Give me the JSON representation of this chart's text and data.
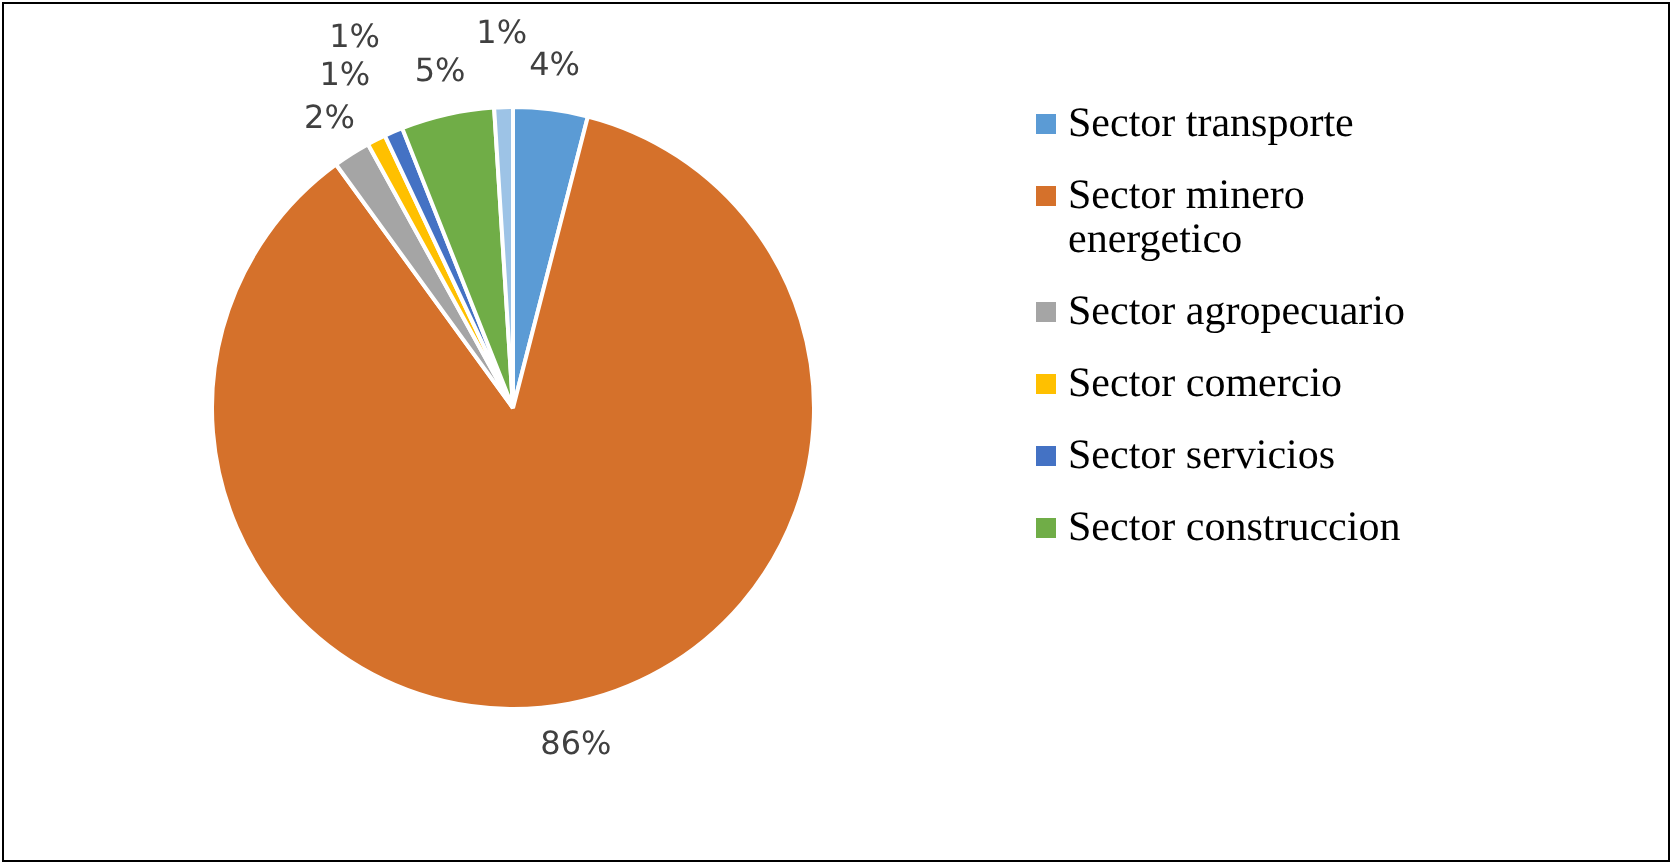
{
  "chart_data": {
    "type": "pie",
    "categories": [
      "Sector transporte",
      "Sector minero energetico",
      "Sector agropecuario",
      "Sector comercio",
      "Sector servicios",
      "Sector construccion",
      null
    ],
    "values": [
      4,
      86,
      2,
      1,
      1,
      5,
      1
    ],
    "value_labels": [
      "4%",
      "86%",
      "2%",
      "1%",
      "1%",
      "5%",
      "1%"
    ],
    "colors": [
      "#5b9bd5",
      "#d5712b",
      "#a5a5a5",
      "#ffc000",
      "#4472c4",
      "#70ad47",
      "#9dc3e6"
    ],
    "legend": "right"
  }
}
